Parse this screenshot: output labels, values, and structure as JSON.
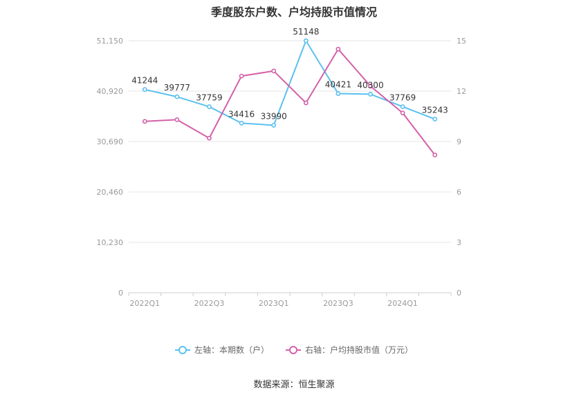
{
  "chart_data": {
    "type": "line",
    "title": "季度股东户数、户均持股市值情况",
    "source": "数据来源：恒生聚源",
    "x": [
      "2022Q1",
      "2022Q2",
      "2022Q3",
      "2022Q4",
      "2023Q1",
      "2023Q2",
      "2023Q3",
      "2023Q4",
      "2024Q1",
      "2024Q2"
    ],
    "x_tick_labels": [
      "2022Q1",
      "2022Q3",
      "2023Q1",
      "2023Q3",
      "2024Q1"
    ],
    "left_axis": {
      "ylim": [
        0,
        51150
      ],
      "ticks": [
        0,
        10230,
        20460,
        30690,
        40920,
        51150
      ],
      "tick_labels": [
        "0",
        "10,230",
        "20,460",
        "30,690",
        "40,920",
        "51,150"
      ]
    },
    "right_axis": {
      "ylim": [
        0,
        15
      ],
      "ticks": [
        0,
        3,
        6,
        9,
        12,
        15
      ],
      "tick_labels": [
        "0",
        "3",
        "6",
        "9",
        "12",
        "15"
      ]
    },
    "series": [
      {
        "name": "左轴：本期数（户）",
        "axis": "left",
        "color": "#5bc0f0",
        "values": [
          41244,
          39777,
          37759,
          34416,
          33990,
          51148,
          40421,
          40300,
          37769,
          35243
        ],
        "data_labels": [
          "41244",
          "39777",
          "37759",
          "34416",
          "33990",
          "51148",
          "40421",
          "40300",
          "37769",
          "35243"
        ]
      },
      {
        "name": "右轴：户均持股市值（万元）",
        "axis": "right",
        "color": "#d460a8",
        "values": [
          10.2,
          10.3,
          9.2,
          12.9,
          13.2,
          11.3,
          14.5,
          12.3,
          10.7,
          8.2
        ]
      }
    ],
    "grid": true,
    "legend_position": "bottom"
  }
}
